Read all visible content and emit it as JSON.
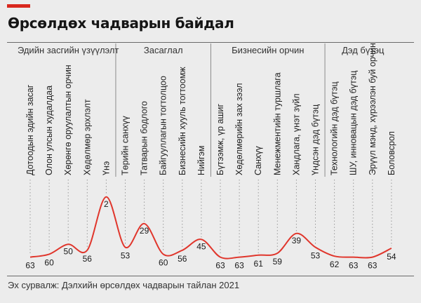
{
  "title": "Өрсөлдөх чадварын байдал",
  "source": "Эх сурвалж: Дэлхийн өрсөлдөх чадварын тайлан 2021",
  "colors": {
    "accent": "#d9281e",
    "line": "#e0362c",
    "grid": "#9a9a9a",
    "background": "#ececec"
  },
  "chart_data": {
    "type": "line",
    "title": "Өрсөлдөх чадварын байдал",
    "groups": [
      {
        "label": "Эдийн засгийн үзүүлэлт",
        "start": 0,
        "end": 4
      },
      {
        "label": "Засаглал",
        "start": 5,
        "end": 9
      },
      {
        "label": "Бизнесийн орчин",
        "start": 10,
        "end": 15
      },
      {
        "label": "Дэд бүтэц",
        "start": 16,
        "end": 19
      }
    ],
    "categories": [
      "Дотоодын эдийн засаг",
      "Олон улсын худалдаа",
      "Хөрөнгө оруулалтын орчин",
      "Хөдөлмөр эрхлэлт",
      "Үнэ",
      "Төрийн санхүү",
      "Татварын бодлого",
      "Байгууллагын тогтолцоо",
      "Бизнесийн хууль тогтоомж",
      "Нийгэм",
      "Бүтээмж, үр ашиг",
      "Хөдөлмөрийн зах зээл",
      "Санхүү",
      "Менежментийн туршлага",
      "Хандлага, үнэт зүйл",
      "Үндсэн дэд бүтэц",
      "Технологийн дэд бүтэц",
      "ШУ, инновацын дэд бүтэц",
      "Эрүүл мэнд, хүрээлэн буй орчин",
      "Боловсрол"
    ],
    "values": [
      63,
      60,
      50,
      56,
      2,
      53,
      29,
      60,
      56,
      45,
      63,
      63,
      61,
      59,
      39,
      53,
      62,
      63,
      63,
      54
    ],
    "ylim": [
      0,
      64
    ],
    "ydirection": "inverted",
    "grid": true
  }
}
